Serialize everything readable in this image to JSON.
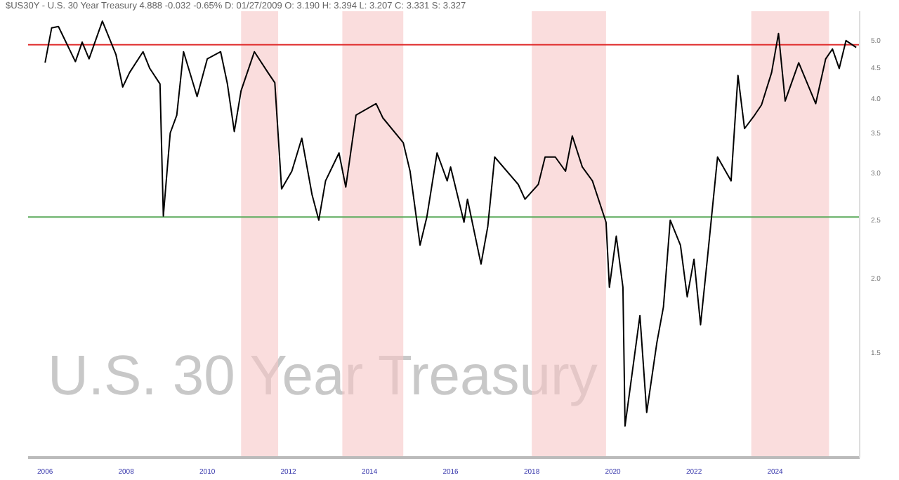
{
  "chart_data": {
    "type": "line",
    "title": "U.S. 30 Year Treasury",
    "subtitle": "$US30Y - U.S. 30 Year Treasury 4.888 -0.032 -0.65% D: 01/27/2009 O: 3.190 H: 3.394 L: 3.207 C: 3.331 S: 3.327",
    "x": [
      "2006-01",
      "2006-03",
      "2006-05",
      "2006-10",
      "2006-12",
      "2007-02",
      "2007-06",
      "2007-10",
      "2007-12",
      "2008-02",
      "2008-06",
      "2008-08",
      "2008-11",
      "2008-12",
      "2009-02",
      "2009-04",
      "2009-06",
      "2009-10",
      "2010-01",
      "2010-05",
      "2010-07",
      "2010-09",
      "2010-11",
      "2011-03",
      "2011-07",
      "2011-09",
      "2011-11",
      "2012-02",
      "2012-05",
      "2012-08",
      "2012-10",
      "2012-12",
      "2013-04",
      "2013-06",
      "2013-09",
      "2014-03",
      "2014-05",
      "2014-11",
      "2015-01",
      "2015-04",
      "2015-06",
      "2015-09",
      "2015-12",
      "2016-01",
      "2016-05",
      "2016-06",
      "2016-10",
      "2016-12",
      "2017-02",
      "2017-09",
      "2017-11",
      "2018-03",
      "2018-05",
      "2018-08",
      "2018-11",
      "2019-01",
      "2019-04",
      "2019-07",
      "2019-11",
      "2019-12",
      "2020-02",
      "2020-04-01",
      "2020-04-20",
      "2020-09",
      "2020-11",
      "2021-02",
      "2021-04",
      "2021-06",
      "2021-09",
      "2021-11",
      "2022-01",
      "2022-03",
      "2022-05",
      "2022-08",
      "2022-12",
      "2023-02",
      "2023-04",
      "2023-07",
      "2023-09",
      "2023-12",
      "2024-02",
      "2024-04",
      "2024-08",
      "2025-01",
      "2025-04",
      "2025-06",
      "2025-08",
      "2025-10",
      "2026-01"
    ],
    "series": [
      {
        "color": "#000000",
        "values": [
          4.59,
          5.25,
          5.28,
          4.61,
          4.97,
          4.66,
          5.39,
          4.74,
          4.18,
          4.42,
          4.79,
          4.49,
          4.23,
          2.54,
          3.5,
          3.75,
          4.79,
          4.03,
          4.66,
          4.79,
          4.23,
          3.52,
          4.12,
          4.79,
          4.42,
          4.25,
          2.82,
          3.02,
          3.43,
          2.76,
          2.5,
          2.91,
          3.24,
          2.84,
          3.75,
          3.92,
          3.71,
          3.37,
          3.02,
          2.27,
          2.53,
          3.24,
          2.91,
          3.07,
          2.48,
          2.71,
          2.11,
          2.44,
          3.19,
          2.87,
          2.71,
          2.87,
          3.19,
          3.19,
          3.02,
          3.46,
          3.07,
          2.91,
          2.48,
          1.93,
          2.35,
          1.93,
          1.13,
          1.73,
          1.19,
          1.56,
          1.79,
          2.5,
          2.27,
          1.86,
          2.15,
          1.67,
          2.15,
          3.19,
          2.91,
          4.37,
          3.56,
          3.75,
          3.9,
          4.42,
          5.14,
          3.96,
          4.59,
          3.92,
          4.66,
          4.84,
          4.49,
          5.0,
          4.87
        ]
      }
    ],
    "xlim": [
      "2005-08",
      "2026-02"
    ],
    "xticks": [
      "2006",
      "2008",
      "2010",
      "2012",
      "2014",
      "2016",
      "2018",
      "2020",
      "2022",
      "2024"
    ],
    "ylim": [
      1.0,
      5.6
    ],
    "yticks": [
      {
        "value": 5,
        "label": "5.0"
      },
      {
        "value": 4.5,
        "label": "4.5"
      },
      {
        "value": 4,
        "label": "4.0"
      },
      {
        "value": 3.5,
        "label": "3.5"
      },
      {
        "value": 3,
        "label": "3.0"
      },
      {
        "value": 2.5,
        "label": "2.5"
      },
      {
        "value": 2,
        "label": "2.0"
      },
      {
        "value": 1.5,
        "label": "1.5"
      }
    ],
    "log": "y",
    "grid": false,
    "legend": false,
    "marker": "none",
    "line_style": "solid",
    "ref_lines": [
      {
        "axis": "y",
        "value": 4.92,
        "color": "#e03030",
        "line_style": "solid"
      },
      {
        "axis": "y",
        "value": 2.53,
        "color": "#5aaa5a",
        "line_style": "solid"
      }
    ],
    "bands": [
      {
        "axis": "x",
        "from": "2010-11",
        "to": "2011-10",
        "color": "#f6c6c6"
      },
      {
        "axis": "x",
        "from": "2013-05",
        "to": "2014-11",
        "color": "#f6c6c6"
      },
      {
        "axis": "x",
        "from": "2018-01",
        "to": "2019-11",
        "color": "#f6c6c6"
      },
      {
        "axis": "x",
        "from": "2023-06",
        "to": "2025-05",
        "color": "#f6c6c6"
      }
    ]
  }
}
